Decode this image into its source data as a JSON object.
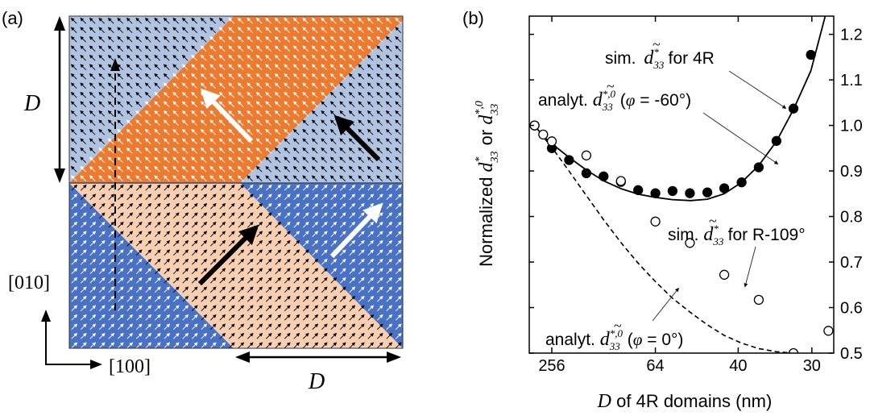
{
  "panel_a": {
    "label": "(a)",
    "dim_label_vertical": "D",
    "dim_label_horizontal": "D",
    "axis_y_label": "[010]",
    "axis_x_label": "[100]",
    "colors": {
      "light_blue": "#b0c4e2",
      "orange": "#ec7b30",
      "peach": "#f9cfb2",
      "blue": "#4a72c4"
    }
  },
  "panel_b": {
    "label": "(b)"
  },
  "chart_data": {
    "type": "scatter",
    "title": "",
    "xlabel": "D of 4R domains (nm)",
    "ylabel": "Normalized d*33 or d*,033",
    "ylim": [
      0.5,
      1.24
    ],
    "x_scale": "1/D",
    "x_ticks": [
      256,
      64,
      40,
      30
    ],
    "y_ticks": [
      0.5,
      0.6,
      0.7,
      0.8,
      0.9,
      1.0,
      1.1,
      1.2
    ],
    "y_tick_labels": [
      "0.5",
      "0.6",
      "0.7",
      "0.8",
      "0.9",
      "1.0",
      "1.1",
      "1.2"
    ],
    "series": [
      {
        "name": "sim. d33 for 4R",
        "marker": "filled-circle",
        "x": [
          512,
          256,
          170.7,
          128,
          102.4,
          85.3,
          73.1,
          64,
          56.9,
          51.2,
          46.5,
          42.7,
          39.4,
          36.6,
          34.1,
          32,
          30.1
        ],
        "y": [
          1.0,
          0.95,
          0.924,
          0.895,
          0.888,
          0.876,
          0.858,
          0.851,
          0.856,
          0.851,
          0.853,
          0.862,
          0.875,
          0.908,
          0.966,
          1.037,
          1.155
        ]
      },
      {
        "name": "sim. d33 for R-109°",
        "marker": "open-circle",
        "x": [
          512,
          341,
          256,
          128,
          85.3,
          64,
          51.2,
          42.7,
          36.6,
          32,
          28.4
        ],
        "y": [
          1.0,
          0.98,
          0.965,
          0.934,
          0.878,
          0.789,
          0.742,
          0.672,
          0.617,
          0.5,
          0.549
        ]
      },
      {
        "name": "analyt. d33 (φ = -60°)",
        "line": "solid",
        "x": [
          512,
          341,
          256,
          171,
          128,
          102,
          85,
          73,
          64,
          57,
          51,
          46.5,
          42.7,
          39.4,
          36.6,
          34.1,
          32,
          30.1,
          28.7
        ],
        "y": [
          1.0,
          0.976,
          0.96,
          0.93,
          0.902,
          0.878,
          0.861,
          0.849,
          0.842,
          0.837,
          0.835,
          0.838,
          0.85,
          0.875,
          0.912,
          0.965,
          1.035,
          1.12,
          1.24
        ]
      },
      {
        "name": "analyt. d33 (φ = 0°)",
        "line": "dashed",
        "x": [
          512,
          341,
          256,
          171,
          128,
          102,
          85,
          73,
          64,
          57,
          51,
          46.5,
          42.7,
          39.4,
          36.6,
          34.1,
          32
        ],
        "y": [
          1.0,
          0.975,
          0.952,
          0.9,
          0.846,
          0.792,
          0.742,
          0.697,
          0.657,
          0.621,
          0.589,
          0.562,
          0.539,
          0.522,
          0.51,
          0.503,
          0.5
        ]
      }
    ],
    "annotations": {
      "sim_4r": {
        "prefix": "sim. ",
        "suffix": " for 4R"
      },
      "analyt_60": {
        "prefix": "analyt. ",
        "suffix": " (",
        "phi": "φ",
        "value": " = -60°)"
      },
      "sim_r109": {
        "prefix": "sim. ",
        "suffix": " for R-109°"
      },
      "analyt_0": {
        "prefix": "analyt. ",
        "suffix": " (",
        "phi": "φ",
        "value": " = 0°)"
      }
    },
    "symbol": {
      "d": "d",
      "sub": "33",
      "sup_star": "*",
      "sup_star0": "*,0",
      "tilde": "~",
      "ylabel_prefix": "Normalized ",
      "ylabel_or": " or ",
      "xlabel_d": "D",
      "xlabel_rest": " of 4R domains (nm)"
    }
  }
}
